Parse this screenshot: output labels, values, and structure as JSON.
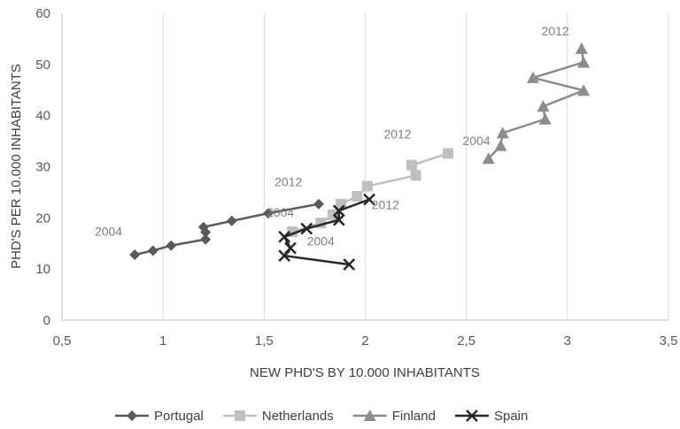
{
  "chart_data": {
    "type": "scatter",
    "xlabel": "NEW PHD'S BY 10.000 INHABITANTS",
    "ylabel": "PHD'S PER 10.000 INHABITANTS",
    "xlim": [
      0.5,
      3.5
    ],
    "ylim": [
      0,
      60
    ],
    "x_ticks": [
      "0,5",
      "1",
      "1,5",
      "2",
      "2,5",
      "3",
      "3,5"
    ],
    "y_ticks": [
      "0",
      "10",
      "20",
      "30",
      "40",
      "50",
      "60"
    ],
    "grid": "vertical",
    "legend_position": "bottom",
    "series": [
      {
        "name": "Portugal",
        "color": "#595959",
        "marker": "diamond",
        "points": [
          [
            0.86,
            12.8
          ],
          [
            0.95,
            13.6
          ],
          [
            1.04,
            14.6
          ],
          [
            1.21,
            15.8
          ],
          [
            1.21,
            17.2
          ],
          [
            1.2,
            18.2
          ],
          [
            1.34,
            19.4
          ],
          [
            1.52,
            20.9
          ],
          [
            1.77,
            22.7
          ]
        ]
      },
      {
        "name": "Netherlands",
        "color": "#bfbfbf",
        "marker": "square",
        "points": [
          [
            1.64,
            17.3
          ],
          [
            1.78,
            19.0
          ],
          [
            1.84,
            20.6
          ],
          [
            1.88,
            22.7
          ],
          [
            1.96,
            24.2
          ],
          [
            2.01,
            26.2
          ],
          [
            2.25,
            28.3
          ],
          [
            2.23,
            30.3
          ],
          [
            2.41,
            32.6
          ]
        ]
      },
      {
        "name": "Finland",
        "color": "#8c8c8c",
        "marker": "triangle",
        "points": [
          [
            2.61,
            31.6
          ],
          [
            2.67,
            34.1
          ],
          [
            2.68,
            36.6
          ],
          [
            2.89,
            39.3
          ],
          [
            2.88,
            41.8
          ],
          [
            3.08,
            44.9
          ],
          [
            2.83,
            47.4
          ],
          [
            3.08,
            50.4
          ],
          [
            3.07,
            53.1
          ]
        ]
      },
      {
        "name": "Spain",
        "color": "#262626",
        "marker": "x",
        "points": [
          [
            1.92,
            10.9
          ],
          [
            1.6,
            12.6
          ],
          [
            1.63,
            14.1
          ],
          [
            1.6,
            16.3
          ],
          [
            1.71,
            17.9
          ],
          [
            1.87,
            19.6
          ],
          [
            1.87,
            21.4
          ],
          [
            2.02,
            23.6
          ]
        ]
      }
    ],
    "annotations": [
      {
        "text": "2004",
        "x": 0.73,
        "y": 16.5
      },
      {
        "text": "2012",
        "x": 1.62,
        "y": 26.2
      },
      {
        "text": "2004",
        "x": 1.58,
        "y": 20.2
      },
      {
        "text": "2012",
        "x": 2.16,
        "y": 35.5
      },
      {
        "text": "2004",
        "x": 2.55,
        "y": 34.2
      },
      {
        "text": "2012",
        "x": 2.94,
        "y": 55.7
      },
      {
        "text": "2004",
        "x": 1.78,
        "y": 14.6
      },
      {
        "text": "2012",
        "x": 2.1,
        "y": 21.7
      }
    ]
  }
}
